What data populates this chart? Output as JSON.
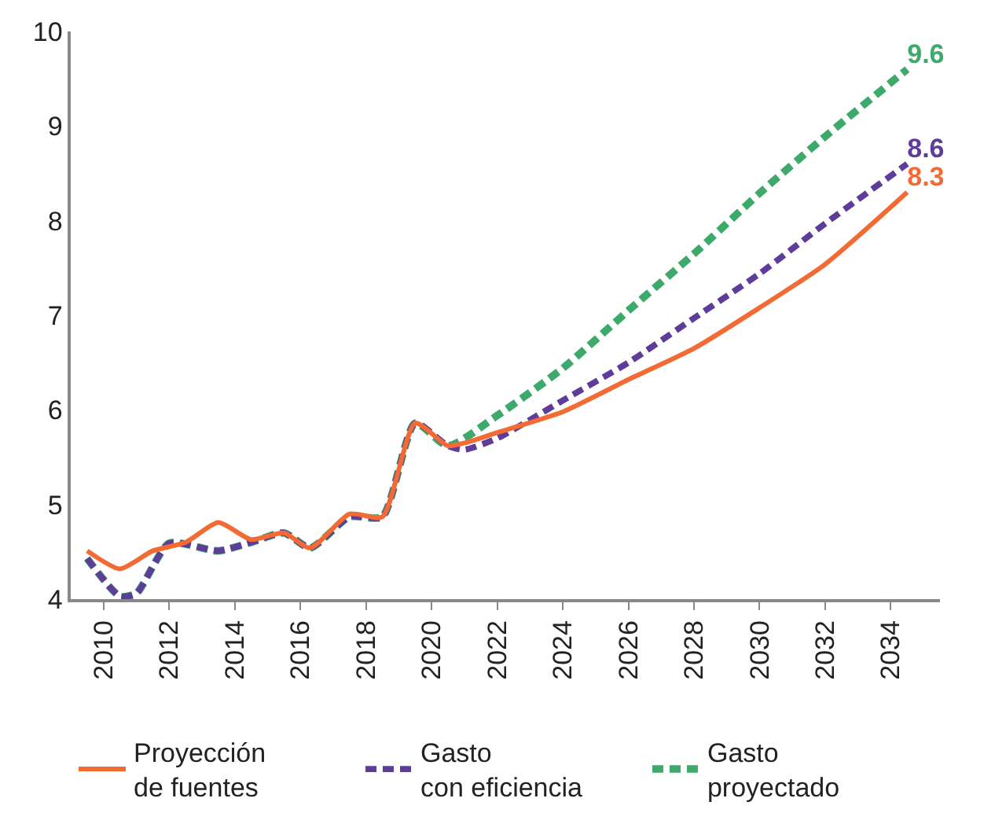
{
  "chart_data": {
    "type": "line",
    "xlim": [
      2009,
      2035.5
    ],
    "xticks": [
      2010,
      2012,
      2014,
      2016,
      2018,
      2020,
      2022,
      2024,
      2026,
      2028,
      2030,
      2032,
      2034
    ],
    "ylim": [
      4,
      10
    ],
    "yticks": [
      4,
      5,
      6,
      7,
      8,
      9,
      10
    ],
    "legend": "bottom",
    "series": [
      {
        "name": "Proyección\nde fuentes",
        "color": "#f26b35",
        "line_style": "solid",
        "x": [
          2009.5,
          2010.5,
          2011.5,
          2012.5,
          2013.5,
          2014.5,
          2015.5,
          2016.3,
          2017.5,
          2018.5,
          2019.5,
          2020.5,
          2021,
          2022,
          2024,
          2026,
          2028,
          2030,
          2032,
          2034.5
        ],
        "values": [
          4.51,
          4.32,
          4.51,
          4.6,
          4.81,
          4.63,
          4.7,
          4.54,
          4.9,
          4.87,
          5.86,
          5.62,
          5.65,
          5.76,
          5.98,
          6.32,
          6.65,
          7.08,
          7.54,
          8.3
        ],
        "value_labels": [
          null,
          null,
          null,
          null,
          null,
          null,
          null,
          null,
          null,
          null,
          null,
          null,
          null,
          null,
          null,
          null,
          null,
          null,
          null,
          "8.3"
        ]
      },
      {
        "name": "Gasto\ncon eficiencia",
        "color": "#5e3c99",
        "line_style": "dashed",
        "x": [
          2009.5,
          2010.5,
          2011,
          2012,
          2013.5,
          2014.5,
          2015.5,
          2016.3,
          2017.5,
          2018.5,
          2019.5,
          2020.5,
          2021,
          2022,
          2024,
          2026,
          2028,
          2030,
          2032,
          2034.5
        ],
        "values": [
          4.43,
          4.03,
          4.06,
          4.59,
          4.51,
          4.6,
          4.7,
          4.54,
          4.87,
          4.87,
          5.86,
          5.62,
          5.58,
          5.7,
          6.1,
          6.5,
          6.97,
          7.44,
          7.97,
          8.6
        ],
        "value_labels": [
          null,
          null,
          null,
          null,
          null,
          null,
          null,
          null,
          null,
          null,
          null,
          null,
          null,
          null,
          null,
          null,
          null,
          null,
          null,
          "8.6"
        ]
      },
      {
        "name": "Gasto\nproyectado",
        "color": "#3daa6c",
        "line_style": "dashed",
        "x": [
          2009.5,
          2010.5,
          2011,
          2012,
          2013.5,
          2014.5,
          2015.5,
          2016.3,
          2017.5,
          2018.5,
          2019.5,
          2020.5,
          2022,
          2024,
          2026,
          2028,
          2030,
          2032,
          2034.5
        ],
        "values": [
          4.43,
          4.03,
          4.06,
          4.59,
          4.51,
          4.6,
          4.7,
          4.54,
          4.87,
          4.87,
          5.86,
          5.62,
          5.94,
          6.44,
          7.05,
          7.65,
          8.29,
          8.89,
          9.6
        ],
        "value_labels": [
          null,
          null,
          null,
          null,
          null,
          null,
          null,
          null,
          null,
          null,
          null,
          null,
          null,
          null,
          null,
          null,
          null,
          null,
          "9.6"
        ]
      }
    ]
  }
}
